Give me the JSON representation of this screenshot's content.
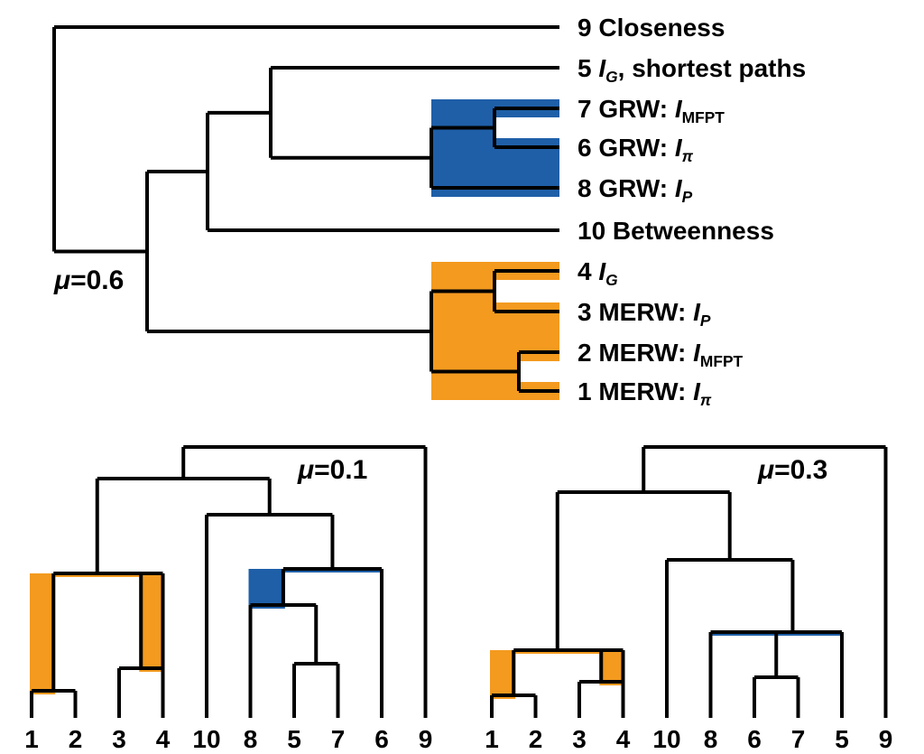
{
  "colors": {
    "orange": "#f39a1f",
    "blue": "#1f5fa8",
    "line": "#000000",
    "bg": "#ffffff"
  },
  "stroke_width": 4,
  "font_sizes": {
    "top_labels": 28,
    "mu": 30,
    "bottom_axis": 28
  },
  "mu_labels": {
    "top": "μ=0.6",
    "left": "μ=0.1",
    "right": "μ=0.3"
  },
  "top_labels": {
    "l9": "9 Closeness",
    "l5": "5",
    "l5b": ", shortest paths",
    "l7": "7 GRW:",
    "l6": "6 GRW:",
    "l8": "8 GRW:",
    "l10": "10 Betweenness",
    "l4": "4",
    "l3": "3 MERW:",
    "l2": "2 MERW:",
    "l1": "1 MERW:",
    "ig": "I",
    "g_sub": "G",
    "p_sub": "P",
    "pi_sub": "π",
    "mfpt_sub": "MFPT"
  },
  "bottom_left_order": [
    "1",
    "2",
    "3",
    "4",
    "10",
    "8",
    "5",
    "7",
    "6",
    "9"
  ],
  "bottom_right_order": [
    "1",
    "2",
    "3",
    "4",
    "10",
    "8",
    "6",
    "7",
    "5",
    "9"
  ]
}
